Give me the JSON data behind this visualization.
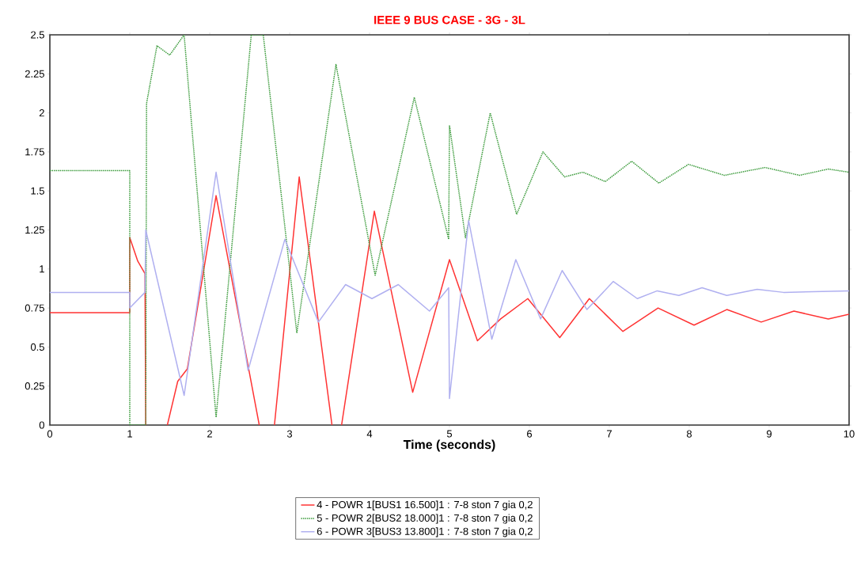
{
  "chart_data": {
    "type": "line",
    "title": "IEEE 9 BUS CASE - 3G - 3L",
    "xlabel": "Time (seconds)",
    "xlim": [
      0,
      10
    ],
    "ylim": [
      0,
      2.5
    ],
    "xticks": [
      0,
      1,
      2,
      3,
      4,
      5,
      6,
      7,
      8,
      9,
      10
    ],
    "yticks": [
      0,
      0.25,
      0.5,
      0.75,
      1,
      1.25,
      1.5,
      1.75,
      2,
      2.25,
      2.5
    ],
    "grid": false,
    "legend": "bottom",
    "marker": "none",
    "series": [
      {
        "name": "4 - POWR    1[BUS1    16.500]1 : 7-8 ston 7 gia 0,2",
        "color": "#ff3333",
        "line_style": "solid",
        "x": [
          0,
          1,
          1,
          1.1,
          1.19,
          1.2,
          1.21,
          1.47,
          1.6,
          1.72,
          2.08,
          2.62,
          2.7,
          2.81,
          3.12,
          3.53,
          3.59,
          3.65,
          4.06,
          4.54,
          5.0,
          5.35,
          5.64,
          5.98,
          6.38,
          6.75,
          7.17,
          7.61,
          8.06,
          8.47,
          8.9,
          9.31,
          9.74,
          10
        ],
        "values": [
          0.72,
          0.72,
          1.2,
          1.05,
          0.97,
          0,
          null,
          0,
          0.28,
          0.36,
          1.47,
          0,
          null,
          0,
          1.59,
          0,
          null,
          0,
          1.37,
          0.21,
          1.06,
          0.54,
          0.68,
          0.81,
          0.56,
          0.81,
          0.6,
          0.75,
          0.64,
          0.74,
          0.66,
          0.73,
          0.68,
          0.71
        ]
      },
      {
        "name": "5 - POWR    2[BUS2    18.000]1 : 7-8 ston 7 gia 0,2",
        "color": "#3a9a3a",
        "line_style": "dotted",
        "x": [
          0,
          1,
          1,
          1.2,
          1.21,
          1.34,
          1.5,
          1.68,
          2.08,
          2.52,
          2.67,
          3.09,
          3.58,
          4.07,
          4.56,
          4.99,
          5.0,
          5.2,
          5.51,
          5.84,
          6.17,
          6.44,
          6.67,
          6.95,
          7.28,
          7.62,
          7.99,
          8.44,
          8.95,
          9.38,
          9.74,
          10
        ],
        "values": [
          1.63,
          1.63,
          0,
          0,
          2.06,
          2.43,
          2.37,
          2.5,
          0.05,
          2.5,
          2.5,
          0.59,
          2.31,
          0.96,
          2.1,
          1.19,
          1.92,
          1.2,
          2.0,
          1.35,
          1.75,
          1.59,
          1.62,
          1.56,
          1.69,
          1.55,
          1.67,
          1.6,
          1.65,
          1.6,
          1.64,
          1.62
        ]
      },
      {
        "name": "6 - POWR    3[BUS3    13.800]1 : 7-8 ston 7 gia 0,2",
        "color": "#b0b0f0",
        "line_style": "solid",
        "x": [
          0,
          1,
          1,
          1.19,
          1.2,
          1.68,
          2.08,
          2.48,
          2.94,
          3.36,
          3.7,
          4.03,
          4.36,
          4.75,
          4.99,
          5.0,
          5.24,
          5.53,
          5.83,
          6.14,
          6.41,
          6.72,
          7.05,
          7.35,
          7.6,
          7.87,
          8.16,
          8.47,
          8.85,
          9.18,
          10
        ],
        "values": [
          0.85,
          0.85,
          0.75,
          0.85,
          1.25,
          0.19,
          1.62,
          0.35,
          1.19,
          0.66,
          0.9,
          0.81,
          0.9,
          0.73,
          0.88,
          0.17,
          1.31,
          0.55,
          1.06,
          0.68,
          0.99,
          0.74,
          0.92,
          0.81,
          0.86,
          0.83,
          0.88,
          0.83,
          0.87,
          0.85,
          0.86
        ]
      }
    ]
  }
}
